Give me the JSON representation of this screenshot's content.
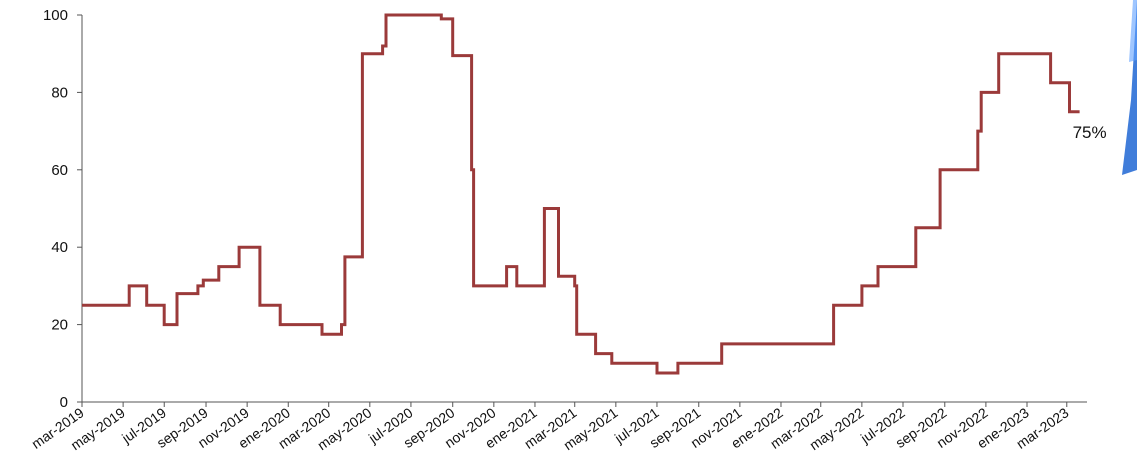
{
  "chart_data": {
    "type": "line",
    "title": "",
    "xlabel": "",
    "ylabel": "",
    "ylim": [
      0,
      100
    ],
    "yticks": [
      0,
      20,
      40,
      60,
      80,
      100
    ],
    "xlim": [
      "2019-03-01",
      "2023-03-31"
    ],
    "xtick_labels": [
      "mar-2019",
      "may-2019",
      "jul-2019",
      "sep-2019",
      "nov-2019",
      "ene-2020",
      "mar-2020",
      "may-2020",
      "jul-2020",
      "sep-2020",
      "nov-2020",
      "ene-2021",
      "mar-2021",
      "may-2021",
      "jul-2021",
      "sep-2021",
      "nov-2021",
      "ene-2022",
      "mar-2022",
      "may-2022",
      "jul-2022",
      "sep-2022",
      "nov-2022",
      "ene-2023",
      "mar-2023"
    ],
    "grid": false,
    "series": [
      {
        "color": "#9b3a3a",
        "step": true,
        "points": [
          [
            "2019-03-01",
            25
          ],
          [
            "2019-05-10",
            30
          ],
          [
            "2019-06-05",
            25
          ],
          [
            "2019-07-01",
            20
          ],
          [
            "2019-07-20",
            28
          ],
          [
            "2019-08-20",
            30
          ],
          [
            "2019-08-28",
            31.5
          ],
          [
            "2019-09-20",
            35
          ],
          [
            "2019-10-20",
            40
          ],
          [
            "2019-11-20",
            25
          ],
          [
            "2019-12-20",
            20
          ],
          [
            "2020-02-20",
            17.5
          ],
          [
            "2020-03-20",
            20
          ],
          [
            "2020-03-25",
            37.5
          ],
          [
            "2020-04-20",
            90
          ],
          [
            "2020-05-20",
            92
          ],
          [
            "2020-05-25",
            100
          ],
          [
            "2020-08-15",
            99
          ],
          [
            "2020-09-01",
            89.5
          ],
          [
            "2020-09-29",
            60
          ],
          [
            "2020-10-02",
            30
          ],
          [
            "2020-11-20",
            35
          ],
          [
            "2020-12-05",
            30
          ],
          [
            "2021-01-15",
            50
          ],
          [
            "2021-02-05",
            32.5
          ],
          [
            "2021-03-01",
            30
          ],
          [
            "2021-03-04",
            17.5
          ],
          [
            "2021-04-01",
            12.5
          ],
          [
            "2021-04-25",
            10
          ],
          [
            "2021-07-01",
            7.5
          ],
          [
            "2021-08-01",
            10
          ],
          [
            "2021-10-05",
            15
          ],
          [
            "2022-03-20",
            25
          ],
          [
            "2022-05-01",
            30
          ],
          [
            "2022-05-25",
            35
          ],
          [
            "2022-07-20",
            45
          ],
          [
            "2022-08-25",
            60
          ],
          [
            "2022-10-20",
            70
          ],
          [
            "2022-10-25",
            80
          ],
          [
            "2022-11-20",
            90
          ],
          [
            "2023-02-05",
            82.5
          ],
          [
            "2023-03-05",
            75
          ],
          [
            "2023-03-20",
            75
          ]
        ]
      }
    ],
    "annotations": [
      {
        "text": "75%",
        "x": "2023-03-20",
        "y": 75
      }
    ]
  }
}
